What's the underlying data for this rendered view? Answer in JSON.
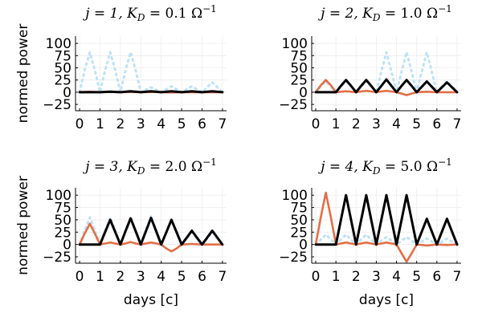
{
  "chart_data": [
    {
      "type": "line",
      "title": "j = 1, K_D = 0.1 Ω⁻¹",
      "title_parts": {
        "pre": "j = 1, K",
        "sub": "D",
        "mid": " = 0.1 Ω",
        "sup": "−1"
      },
      "xlabel": "",
      "ylabel": "normed power",
      "xlim": [
        -0.2,
        7.2
      ],
      "ylim": [
        -38,
        115
      ],
      "xticks": [
        0,
        1,
        2,
        3,
        4,
        5,
        6,
        7
      ],
      "yticks": [
        -25,
        0,
        25,
        50,
        75,
        100
      ],
      "grid": true,
      "legend": "none",
      "series": [
        {
          "color": "#bfe2f7",
          "style": "dotted",
          "x": [
            0,
            0.25,
            0.5,
            0.75,
            1,
            1.25,
            1.5,
            1.75,
            2,
            2.25,
            2.5,
            2.75,
            3,
            3.25,
            3.5,
            3.75,
            4,
            4.25,
            4.5,
            4.75,
            5,
            5.25,
            5.5,
            5.75,
            6,
            6.25,
            6.5,
            6.75,
            7
          ],
          "y": [
            0,
            45,
            82,
            45,
            0,
            45,
            82,
            45,
            0,
            45,
            82,
            45,
            0,
            5,
            10,
            5,
            0,
            6,
            12,
            6,
            0,
            6,
            12,
            6,
            0,
            10,
            20,
            10,
            0
          ]
        },
        {
          "color": "#e26f46",
          "style": "solid",
          "x": [
            0,
            0.5,
            1,
            1.5,
            2,
            2.5,
            3,
            3.5,
            4,
            4.5,
            5,
            5.5,
            6,
            6.5,
            7
          ],
          "y": [
            0,
            1,
            0,
            0.5,
            0,
            0.5,
            0,
            0.5,
            0,
            -0.5,
            0,
            0,
            0,
            0,
            0
          ]
        },
        {
          "color": "#000000",
          "style": "solid",
          "x": [
            0,
            0.5,
            1,
            1.5,
            2,
            2.5,
            3,
            3.5,
            4,
            4.5,
            5,
            5.5,
            6,
            6.5,
            7
          ],
          "y": [
            0,
            0,
            0,
            1,
            0,
            2,
            0,
            2,
            0,
            2,
            0,
            2,
            0,
            2,
            0
          ]
        }
      ]
    },
    {
      "type": "line",
      "title": "j = 2, K_D = 1.0 Ω⁻¹",
      "title_parts": {
        "pre": "j = 2, K",
        "sub": "D",
        "mid": " = 1.0 Ω",
        "sup": "−1"
      },
      "xlabel": "",
      "ylabel": "",
      "xlim": [
        -0.2,
        7.2
      ],
      "ylim": [
        -38,
        115
      ],
      "xticks": [
        0,
        1,
        2,
        3,
        4,
        5,
        6,
        7
      ],
      "yticks": [
        -25,
        0,
        25,
        50,
        75,
        100
      ],
      "grid": true,
      "legend": "none",
      "series": [
        {
          "color": "#bfe2f7",
          "style": "dotted",
          "x": [
            0,
            0.25,
            0.5,
            0.75,
            1,
            1.25,
            1.5,
            1.75,
            2,
            2.25,
            2.5,
            2.75,
            3,
            3.25,
            3.5,
            3.75,
            4,
            4.25,
            4.5,
            4.75,
            5,
            5.25,
            5.5,
            5.75,
            6,
            6.25,
            6.5,
            6.75,
            7
          ],
          "y": [
            0,
            12,
            22,
            12,
            0,
            12,
            22,
            12,
            0,
            12,
            22,
            12,
            0,
            42,
            82,
            42,
            0,
            42,
            82,
            42,
            0,
            42,
            82,
            42,
            0,
            12,
            22,
            12,
            0
          ]
        },
        {
          "color": "#e26f46",
          "style": "solid",
          "x": [
            0,
            0.25,
            0.5,
            0.75,
            1,
            1.5,
            2,
            2.5,
            3,
            3.5,
            4,
            4.5,
            5,
            5.5,
            6,
            6.5,
            7
          ],
          "y": [
            0,
            14,
            25,
            14,
            0,
            2,
            0,
            3,
            0,
            3,
            0,
            -6,
            0,
            1,
            0,
            0,
            0
          ]
        },
        {
          "color": "#000000",
          "style": "solid",
          "x": [
            0,
            0.5,
            1,
            1.25,
            1.5,
            1.75,
            2,
            2.25,
            2.5,
            2.75,
            3,
            3.25,
            3.5,
            3.75,
            4,
            4.25,
            4.5,
            4.75,
            5,
            5.25,
            5.5,
            5.75,
            6,
            6.25,
            6.5,
            6.75,
            7
          ],
          "y": [
            0,
            0,
            0,
            13,
            25,
            13,
            0,
            13,
            25,
            13,
            0,
            13,
            26,
            13,
            0,
            13,
            25,
            13,
            0,
            11,
            22,
            11,
            0,
            10,
            20,
            10,
            0
          ]
        }
      ]
    },
    {
      "type": "line",
      "title": "j = 3, K_D = 2.0 Ω⁻¹",
      "title_parts": {
        "pre": "j = 3, K",
        "sub": "D",
        "mid": " = 2.0 Ω",
        "sup": "−1"
      },
      "xlabel": "days [c]",
      "ylabel": "normed power",
      "xlim": [
        -0.2,
        7.2
      ],
      "ylim": [
        -38,
        115
      ],
      "xticks": [
        0,
        1,
        2,
        3,
        4,
        5,
        6,
        7
      ],
      "yticks": [
        -25,
        0,
        25,
        50,
        75,
        100
      ],
      "grid": true,
      "legend": "none",
      "series": [
        {
          "color": "#bfe2f7",
          "style": "dotted",
          "x": [
            0,
            0.25,
            0.5,
            0.75,
            1,
            1.25,
            1.5,
            1.75,
            2,
            2.25,
            2.5,
            2.75,
            3,
            3.25,
            3.5,
            3.75,
            4,
            4.25,
            4.5,
            4.75,
            5,
            5.25,
            5.5,
            5.75,
            6,
            6.25,
            6.5,
            6.75,
            7
          ],
          "y": [
            0,
            28,
            55,
            28,
            0,
            28,
            55,
            28,
            0,
            28,
            55,
            28,
            0,
            30,
            58,
            30,
            0,
            25,
            50,
            25,
            0,
            12,
            25,
            12,
            0,
            12,
            25,
            12,
            0
          ]
        },
        {
          "color": "#e26f46",
          "style": "solid",
          "x": [
            0,
            0.25,
            0.5,
            0.75,
            1,
            1.25,
            1.5,
            1.75,
            2,
            2.25,
            2.5,
            2.75,
            3,
            3.25,
            3.5,
            3.75,
            4,
            4.25,
            4.5,
            4.75,
            5,
            5.5,
            6,
            6.5,
            7
          ],
          "y": [
            0,
            22,
            42,
            22,
            0,
            2,
            4,
            2,
            0,
            2,
            5,
            2,
            0,
            2,
            4,
            2,
            0,
            -8,
            -14,
            -8,
            0,
            1,
            0,
            0,
            0
          ]
        },
        {
          "color": "#000000",
          "style": "solid",
          "x": [
            0,
            0.5,
            1,
            1.25,
            1.5,
            1.75,
            2,
            2.25,
            2.5,
            2.75,
            3,
            3.25,
            3.5,
            3.75,
            4,
            4.25,
            4.5,
            4.75,
            5,
            5.25,
            5.5,
            5.75,
            6,
            6.25,
            6.5,
            6.75,
            7
          ],
          "y": [
            0,
            0,
            0,
            25,
            50,
            25,
            0,
            27,
            53,
            27,
            0,
            27,
            54,
            27,
            0,
            25,
            50,
            25,
            0,
            14,
            28,
            14,
            0,
            14,
            28,
            14,
            0
          ]
        }
      ]
    },
    {
      "type": "line",
      "title": "j = 4, K_D = 5.0 Ω⁻¹",
      "title_parts": {
        "pre": "j = 4, K",
        "sub": "D",
        "mid": " = 5.0 Ω",
        "sup": "−1"
      },
      "xlabel": "days [c]",
      "ylabel": "",
      "xlim": [
        -0.2,
        7.2
      ],
      "ylim": [
        -38,
        115
      ],
      "xticks": [
        0,
        1,
        2,
        3,
        4,
        5,
        6,
        7
      ],
      "yticks": [
        -25,
        0,
        25,
        50,
        75,
        100
      ],
      "grid": true,
      "legend": "none",
      "series": [
        {
          "color": "#bfe2f7",
          "style": "dotted",
          "x": [
            0,
            0.25,
            0.5,
            0.75,
            1,
            1.25,
            1.5,
            1.75,
            2,
            2.25,
            2.5,
            2.75,
            3,
            3.25,
            3.5,
            3.75,
            4,
            4.25,
            4.5,
            4.75,
            5,
            5.25,
            5.5,
            5.75,
            6,
            6.25,
            6.5,
            6.75,
            7
          ],
          "y": [
            0,
            10,
            20,
            10,
            0,
            10,
            20,
            10,
            0,
            10,
            20,
            10,
            0,
            8,
            15,
            8,
            0,
            8,
            15,
            8,
            0,
            6,
            12,
            6,
            0,
            6,
            12,
            6,
            0
          ]
        },
        {
          "color": "#e26f46",
          "style": "solid",
          "x": [
            0,
            0.25,
            0.5,
            0.75,
            1,
            1.25,
            1.5,
            1.75,
            2,
            2.25,
            2.5,
            2.75,
            3,
            3.25,
            3.5,
            3.75,
            4,
            4.25,
            4.5,
            4.75,
            5,
            5.5,
            6,
            6.5,
            7
          ],
          "y": [
            0,
            55,
            105,
            55,
            0,
            2,
            4,
            2,
            0,
            2,
            4,
            2,
            0,
            2,
            4,
            2,
            0,
            -18,
            -35,
            -18,
            0,
            -2,
            0,
            -1,
            0
          ]
        },
        {
          "color": "#000000",
          "style": "solid",
          "x": [
            0,
            0.5,
            1,
            1.25,
            1.5,
            1.75,
            2,
            2.25,
            2.5,
            2.75,
            3,
            3.25,
            3.5,
            3.75,
            4,
            4.25,
            4.5,
            4.75,
            5,
            5.25,
            5.5,
            5.75,
            6,
            6.25,
            6.5,
            6.75,
            7
          ],
          "y": [
            0,
            0,
            0,
            50,
            100,
            50,
            0,
            50,
            100,
            50,
            0,
            50,
            100,
            50,
            0,
            50,
            100,
            50,
            0,
            26,
            52,
            26,
            0,
            26,
            52,
            26,
            0
          ]
        }
      ]
    }
  ]
}
